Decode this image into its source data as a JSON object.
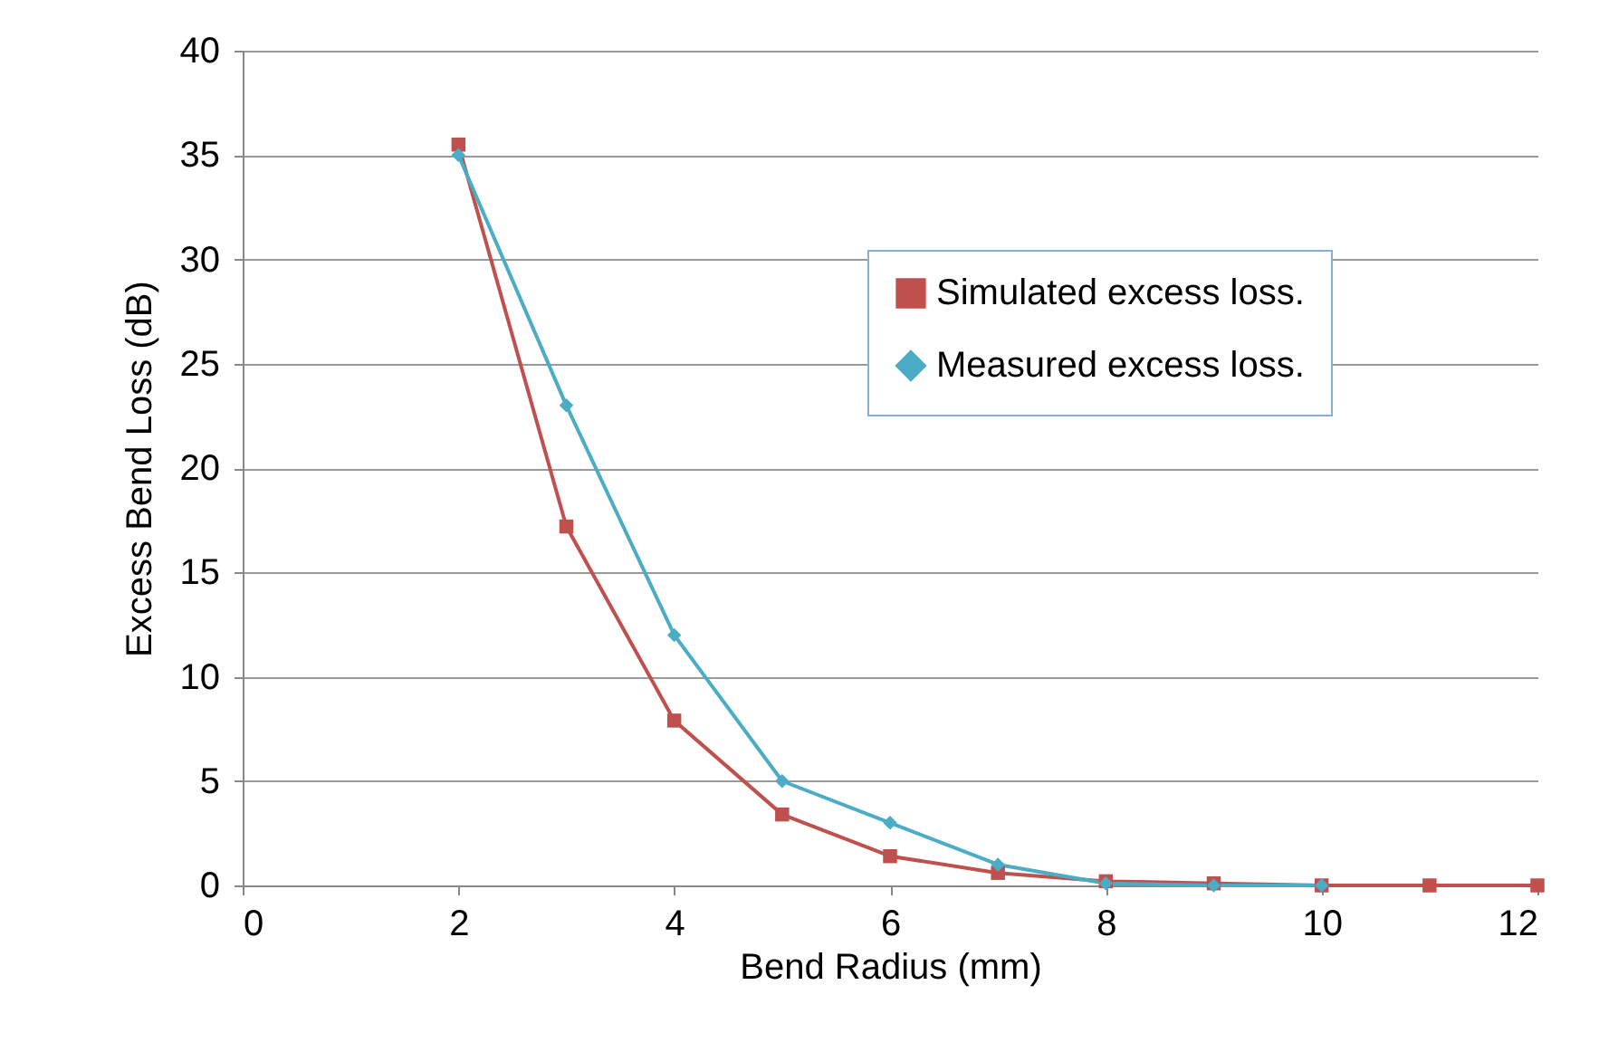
{
  "chart_data": {
    "type": "line",
    "xlabel": "Bend Radius (mm)",
    "ylabel": "Excess Bend Loss (dB)",
    "xlim": [
      0,
      12
    ],
    "xticks": [
      0,
      2,
      4,
      6,
      8,
      10,
      12
    ],
    "ylim": [
      0,
      40
    ],
    "yticks": [
      0,
      5,
      10,
      15,
      20,
      25,
      30,
      35,
      40
    ],
    "grid": "y",
    "legend": "right",
    "line_style": "solid",
    "series": [
      {
        "name": "Simulated excess loss.",
        "color": "#c0504d",
        "marker": "square",
        "x": [
          2,
          3,
          4,
          5,
          6,
          7,
          8,
          9,
          10,
          11,
          12
        ],
        "values": [
          35.5,
          17.2,
          7.9,
          3.4,
          1.4,
          0.6,
          0.2,
          0.1,
          0,
          0,
          0
        ]
      },
      {
        "name": "Measured excess loss.",
        "color": "#4bacc6",
        "marker": "diamond",
        "x": [
          2,
          3,
          4,
          5,
          6,
          7,
          8,
          9,
          10
        ],
        "values": [
          35,
          23,
          12,
          5,
          3,
          1,
          0.1,
          0,
          0
        ]
      }
    ]
  }
}
